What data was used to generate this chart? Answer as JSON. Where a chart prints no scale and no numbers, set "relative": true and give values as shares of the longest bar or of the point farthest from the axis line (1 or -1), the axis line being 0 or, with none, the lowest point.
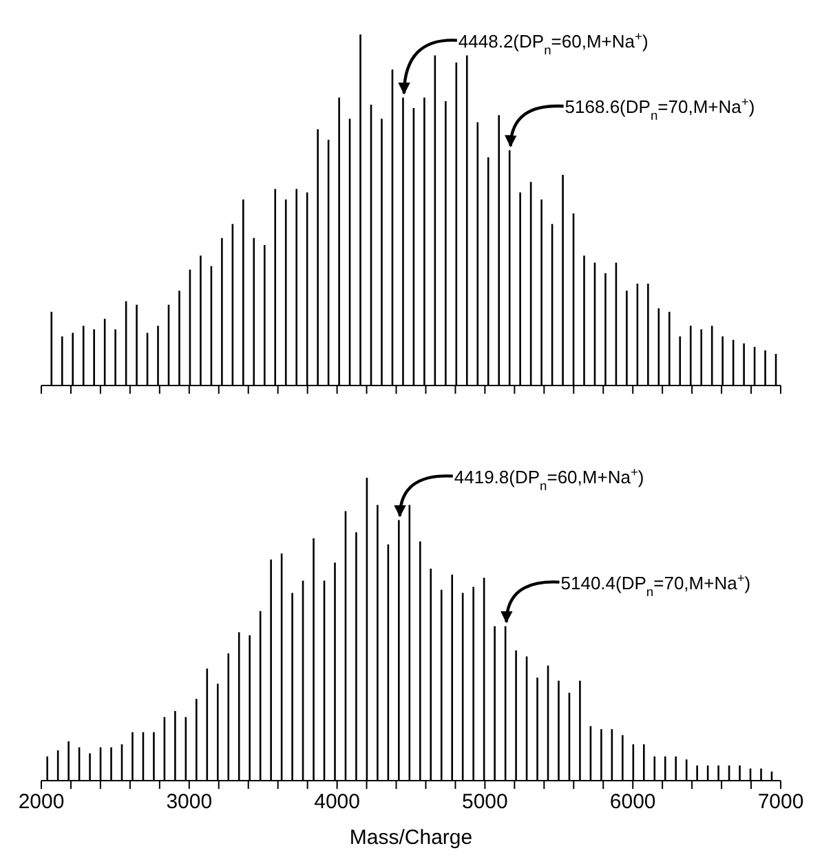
{
  "chart_data": [
    {
      "type": "bar",
      "relative": true,
      "xlim": [
        2000,
        7000
      ],
      "xticks": [
        2000,
        {
          "value": 2200,
          "label": null
        },
        {
          "value": 2400,
          "label": null
        },
        {
          "value": 2600,
          "label": null
        },
        {
          "value": 2800,
          "label": null
        },
        3000,
        {
          "value": 3200,
          "label": null
        },
        {
          "value": 3400,
          "label": null
        },
        {
          "value": 3600,
          "label": null
        },
        {
          "value": 3800,
          "label": null
        },
        4000,
        {
          "value": 4200,
          "label": null
        },
        {
          "value": 4400,
          "label": null
        },
        {
          "value": 4600,
          "label": null
        },
        {
          "value": 4800,
          "label": null
        },
        5000,
        {
          "value": 5200,
          "label": null
        },
        {
          "value": 5400,
          "label": null
        },
        {
          "value": 5600,
          "label": null
        },
        {
          "value": 5800,
          "label": null
        },
        6000,
        {
          "value": 6200,
          "label": null
        },
        {
          "value": 6400,
          "label": null
        },
        {
          "value": 6600,
          "label": null
        },
        {
          "value": 6800,
          "label": null
        },
        7000
      ],
      "tick_labels": false,
      "series": [
        {
          "color": "#000000",
          "x": [
            2070.9,
            2142.9,
            2215.0,
            2287.0,
            2359.0,
            2431.1,
            2503.1,
            2575.2,
            2647.2,
            2719.2,
            2791.3,
            2863.3,
            2935.4,
            3007.4,
            3079.4,
            3151.5,
            3223.5,
            3295.6,
            3367.6,
            3439.6,
            3511.7,
            3583.7,
            3655.8,
            3727.8,
            3799.8,
            3871.9,
            3943.9,
            4016.0,
            4088.0,
            4160.0,
            4232.1,
            4304.1,
            4376.2,
            4448.2,
            4520.2,
            4592.3,
            4664.3,
            4736.4,
            4808.4,
            4880.4,
            4952.5,
            5024.5,
            5096.6,
            5168.6,
            5240.6,
            5312.7,
            5384.7,
            5456.8,
            5528.8,
            5600.8,
            5672.9,
            5744.9,
            5817.0,
            5889.0,
            5961.0,
            6033.1,
            6105.1,
            6177.2,
            6249.2,
            6321.2,
            6393.3,
            6465.3,
            6537.4,
            6609.4,
            6681.4,
            6753.5,
            6825.5,
            6897.6,
            6969.6
          ],
          "values": [
            0.21,
            0.14,
            0.15,
            0.17,
            0.16,
            0.19,
            0.16,
            0.24,
            0.23,
            0.15,
            0.17,
            0.23,
            0.27,
            0.33,
            0.37,
            0.34,
            0.42,
            0.46,
            0.53,
            0.42,
            0.4,
            0.56,
            0.53,
            0.56,
            0.55,
            0.73,
            0.7,
            0.82,
            0.76,
            1,
            0.8,
            0.76,
            0.9,
            0.82,
            0.79,
            0.82,
            0.94,
            0.81,
            0.92,
            0.94,
            0.75,
            0.65,
            0.77,
            0.67,
            0.55,
            0.58,
            0.53,
            0.46,
            0.6,
            0.49,
            0.37,
            0.35,
            0.32,
            0.35,
            0.27,
            0.29,
            0.29,
            0.22,
            0.21,
            0.14,
            0.17,
            0.16,
            0.17,
            0.14,
            0.13,
            0.12,
            0.11,
            0.1,
            0.09
          ]
        }
      ],
      "annotations": [
        {
          "text": "4448.2(DP$_{n}$=60,M+Na$^{+}$)",
          "x": 4448.2,
          "y": 0.82
        },
        {
          "text": "5168.6(DP$_{n}$=70,M+Na$^{+}$)",
          "x": 5168.6,
          "y": 0.67
        }
      ]
    },
    {
      "type": "bar",
      "relative": true,
      "xlabel": "Mass/Charge",
      "xlim": [
        2000,
        7000
      ],
      "xticks": [
        2000,
        {
          "value": 2200,
          "label": null
        },
        {
          "value": 2400,
          "label": null
        },
        {
          "value": 2600,
          "label": null
        },
        {
          "value": 2800,
          "label": null
        },
        3000,
        {
          "value": 3200,
          "label": null
        },
        {
          "value": 3400,
          "label": null
        },
        {
          "value": 3600,
          "label": null
        },
        {
          "value": 3800,
          "label": null
        },
        4000,
        {
          "value": 4200,
          "label": null
        },
        {
          "value": 4400,
          "label": null
        },
        {
          "value": 4600,
          "label": null
        },
        {
          "value": 4800,
          "label": null
        },
        5000,
        {
          "value": 5200,
          "label": null
        },
        {
          "value": 5400,
          "label": null
        },
        {
          "value": 5600,
          "label": null
        },
        {
          "value": 5800,
          "label": null
        },
        6000,
        {
          "value": 6200,
          "label": null
        },
        {
          "value": 6400,
          "label": null
        },
        {
          "value": 6600,
          "label": null
        },
        {
          "value": 6800,
          "label": null
        },
        7000
      ],
      "tick_labels": "x",
      "series": [
        {
          "color": "#000000",
          "x": [
            2042.5,
            2114.5,
            2186.6,
            2258.6,
            2330.6,
            2402.7,
            2474.7,
            2546.8,
            2618.8,
            2690.8,
            2762.9,
            2834.9,
            2907.0,
            2979.0,
            3051.0,
            3123.1,
            3195.1,
            3267.2,
            3339.2,
            3411.2,
            3483.3,
            3555.3,
            3627.4,
            3699.4,
            3771.4,
            3843.5,
            3915.5,
            3987.6,
            4059.6,
            4131.6,
            4203.7,
            4275.7,
            4347.8,
            4419.8,
            4491.8,
            4563.9,
            4635.9,
            4708.0,
            4780.0,
            4852.0,
            4924.1,
            4996.1,
            5068.2,
            5140.4,
            5212.4,
            5284.5,
            5356.5,
            5428.6,
            5500.6,
            5572.6,
            5644.7,
            5716.7,
            5788.8,
            5860.8,
            5932.8,
            6004.9,
            6076.9,
            6149.0,
            6221.0,
            6293.0,
            6365.1,
            6437.1,
            6509.2,
            6581.2,
            6653.2,
            6725.3,
            6797.3,
            6869.4,
            6941.4
          ],
          "values": [
            0.08,
            0.1,
            0.13,
            0.11,
            0.09,
            0.11,
            0.11,
            0.12,
            0.16,
            0.16,
            0.16,
            0.21,
            0.23,
            0.21,
            0.27,
            0.37,
            0.32,
            0.42,
            0.49,
            0.48,
            0.56,
            0.73,
            0.75,
            0.62,
            0.66,
            0.8,
            0.66,
            0.72,
            0.89,
            0.82,
            1,
            0.91,
            0.78,
            0.86,
            0.91,
            0.79,
            0.7,
            0.63,
            0.68,
            0.62,
            0.64,
            0.67,
            0.51,
            0.51,
            0.43,
            0.41,
            0.34,
            0.38,
            0.33,
            0.29,
            0.33,
            0.18,
            0.17,
            0.17,
            0.15,
            0.12,
            0.12,
            0.08,
            0.08,
            0.08,
            0.07,
            0.05,
            0.05,
            0.05,
            0.05,
            0.05,
            0.04,
            0.04,
            0.03
          ]
        }
      ],
      "annotations": [
        {
          "text": "4419.8(DP$_{n}$=60,M+Na$^{+}$)",
          "x": 4419.8,
          "y": 0.86
        },
        {
          "text": "5140.4(DP$_{n}$=70,M+Na$^{+}$)",
          "x": 5140.4,
          "y": 0.51
        }
      ]
    }
  ]
}
